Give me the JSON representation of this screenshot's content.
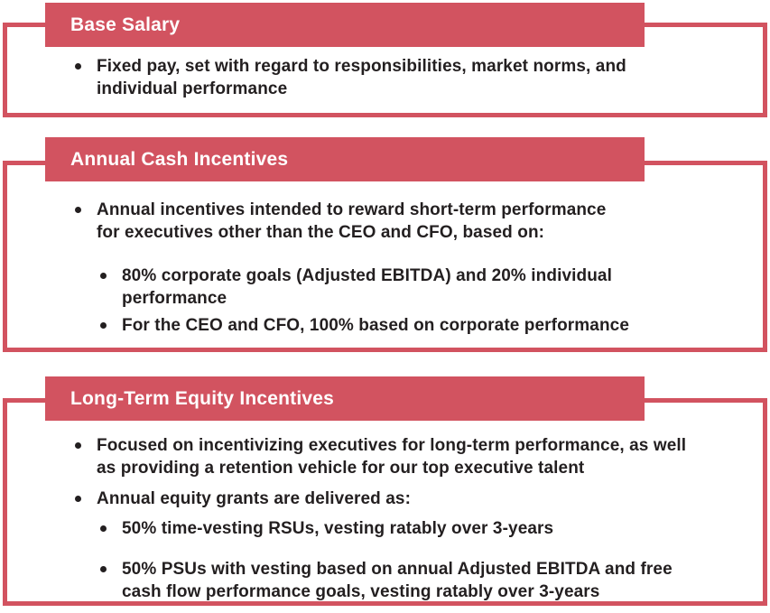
{
  "page": {
    "accent_color": "#d25360",
    "text_color": "#231f20",
    "background_color": "#ffffff"
  },
  "cards": [
    {
      "title": "Base Salary",
      "bullets": [
        {
          "level": 1,
          "lines": [
            "Fixed pay, set with regard to responsibilities, market norms, and",
            "individual performance"
          ]
        }
      ]
    },
    {
      "title": "Annual Cash Incentives",
      "bullets": [
        {
          "level": 1,
          "lines": [
            "Annual incentives intended to reward short-term performance",
            "for executives other than the CEO and CFO, based on:"
          ]
        },
        {
          "level": 2,
          "lines": [
            "80% corporate goals (Adjusted EBITDA) and 20% individual",
            "performance"
          ]
        },
        {
          "level": 2,
          "lines": [
            "For the CEO and CFO, 100% based on corporate performance"
          ]
        }
      ]
    },
    {
      "title": "Long-Term Equity Incentives",
      "bullets": [
        {
          "level": 1,
          "lines": [
            "Focused on incentivizing executives for long-term performance, as well",
            "as providing a retention vehicle for our top executive talent"
          ]
        },
        {
          "level": 1,
          "lines": [
            "Annual equity grants are delivered as:"
          ]
        },
        {
          "level": 2,
          "lines": [
            "50% time-vesting RSUs, vesting ratably over 3-years"
          ]
        },
        {
          "level": 2,
          "lines": [
            "50% PSUs with vesting based on annual Adjusted EBITDA and free",
            "cash flow performance goals, vesting ratably over 3-years"
          ]
        }
      ]
    }
  ]
}
